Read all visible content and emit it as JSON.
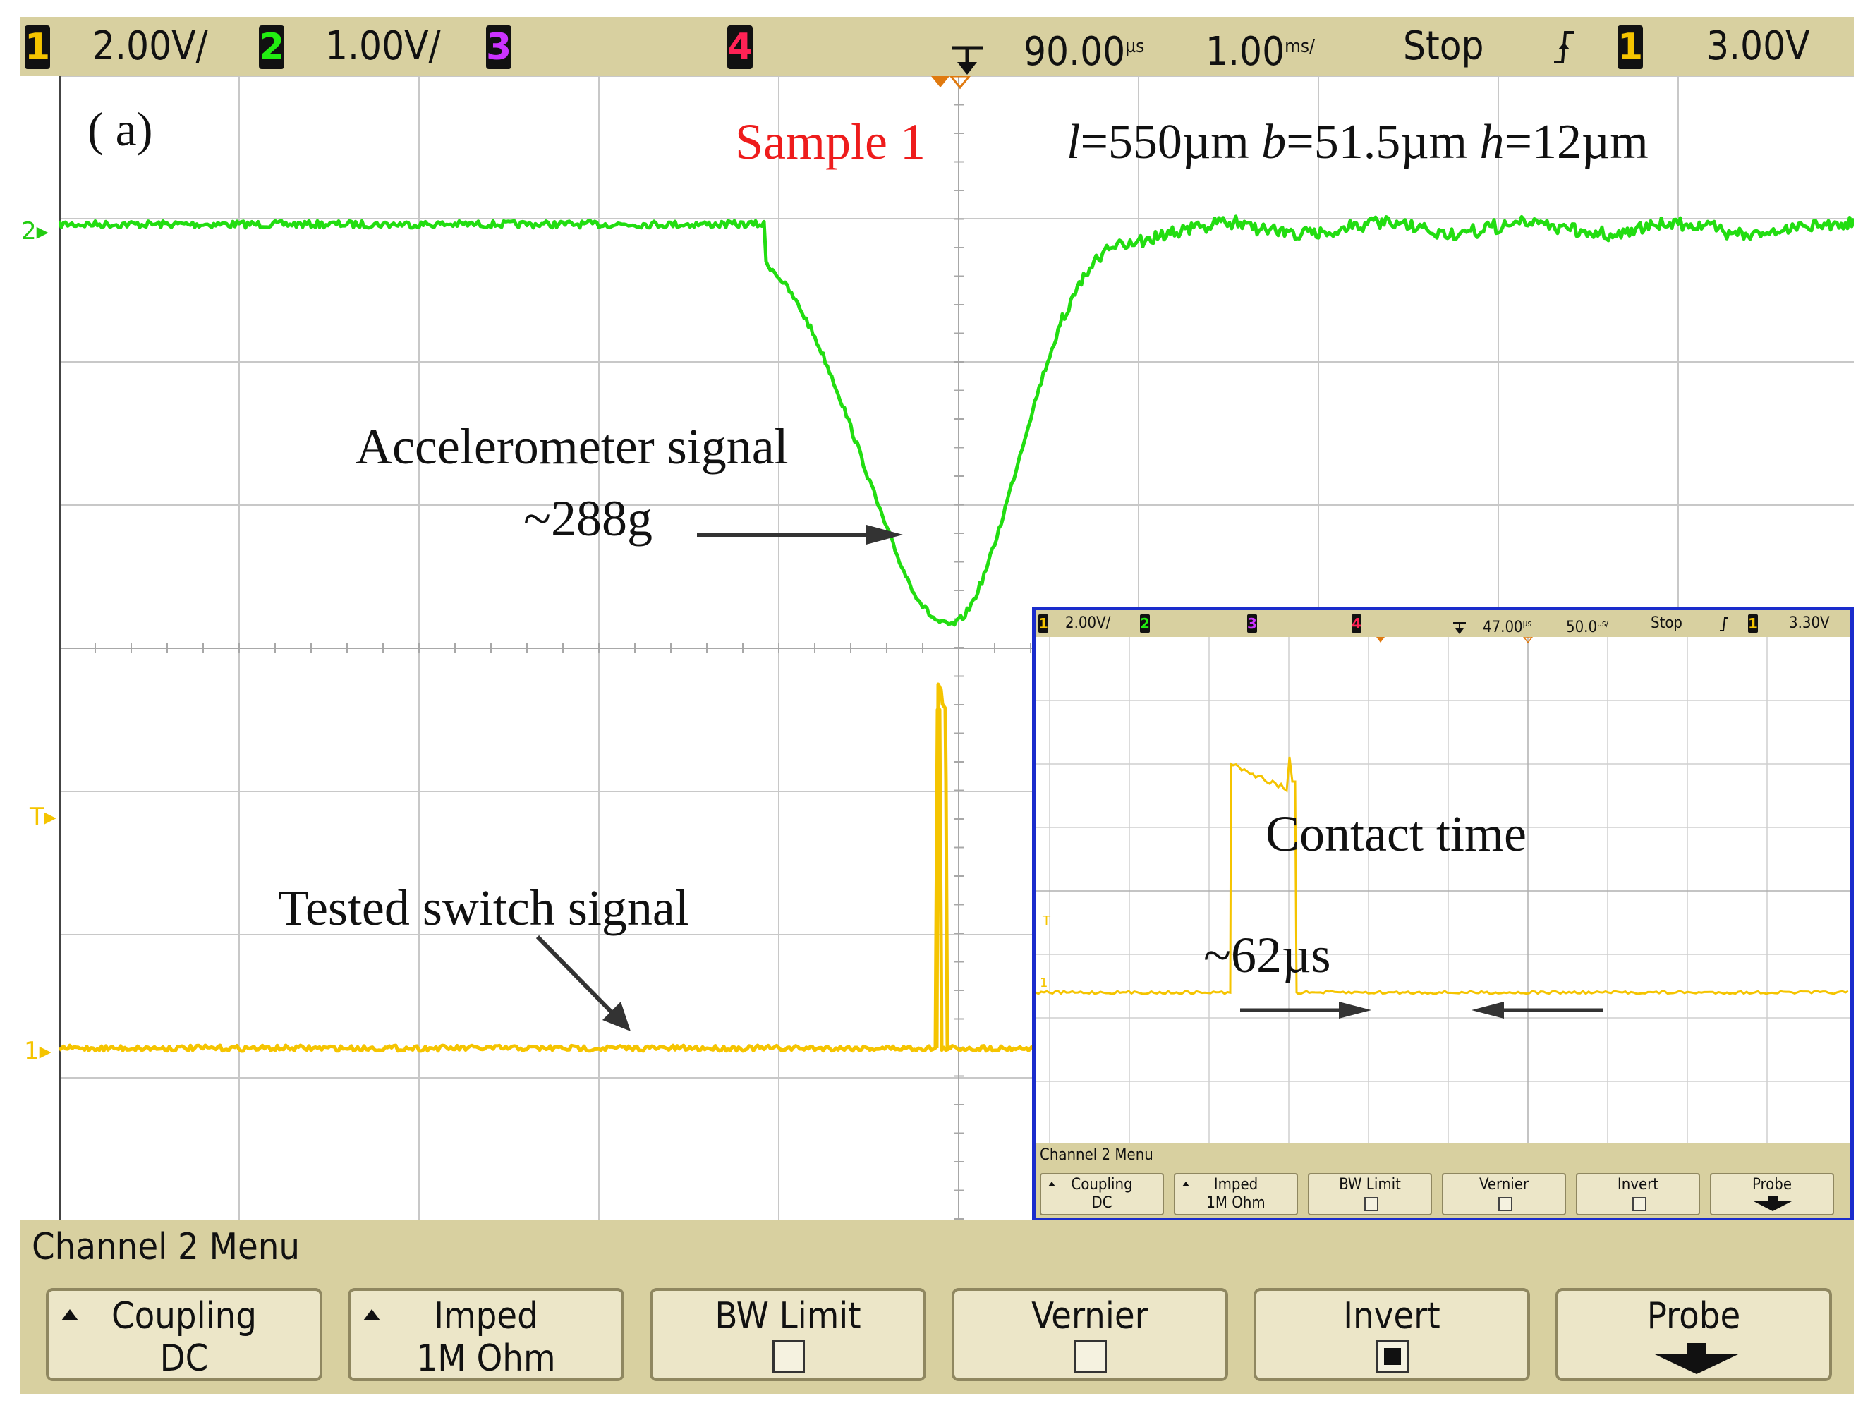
{
  "top_bar": {
    "ch1_num": "1",
    "ch1_scale": "2.00V/",
    "ch2_num": "2",
    "ch2_scale": "1.00V/",
    "ch3_num": "3",
    "ch4_num": "4",
    "time_delay": "90.00",
    "time_delay_unit": "µs",
    "time_scale": "1.00",
    "time_scale_unit": "ms/",
    "run_state": "Stop",
    "trigger_edge_icon": "rising-edge-icon",
    "trigger_source": "1",
    "trigger_level": "3.00V",
    "colors": {
      "ch1": "#f5c400",
      "ch2": "#22ee11",
      "ch3": "#cc33ff",
      "ch4": "#ff2255"
    }
  },
  "markers": {
    "ch2": "2",
    "trigger": "T",
    "ch1": "1"
  },
  "annotations": {
    "panel_label": "( a)",
    "sample_label": "Sample 1",
    "dims_l_var": "l",
    "dims_l_val": "=550µm",
    "dims_b_var": "b",
    "dims_b_val": "=51.5µm",
    "dims_h_var": "h",
    "dims_h_val": "=12µm",
    "accel_label": "Accelerometer signal",
    "accel_value": "~288g",
    "switch_label": "Tested switch signal"
  },
  "menu": {
    "title": "Channel 2  Menu",
    "softkeys": [
      {
        "label": "Coupling",
        "value": "DC"
      },
      {
        "label": "Imped",
        "value": "1M Ohm"
      },
      {
        "label": "BW Limit",
        "checked": false
      },
      {
        "label": "Vernier",
        "checked": false
      },
      {
        "label": "Invert",
        "checked": true
      },
      {
        "label": "Probe"
      }
    ]
  },
  "inset": {
    "top_bar": {
      "ch1_num": "1",
      "ch1_scale": "2.00V/",
      "ch2_num": "2",
      "ch3_num": "3",
      "ch4_num": "4",
      "time_delay": "47.00",
      "time_delay_unit": "µs",
      "time_scale": "50.0",
      "time_scale_unit": "µs/",
      "run_state": "Stop",
      "trigger_source": "1",
      "trigger_level": "3.30V"
    },
    "contact_label": "Contact time",
    "contact_value": "~62µs",
    "menu": {
      "title": "Channel 2  Menu",
      "softkeys": [
        {
          "label": "Coupling",
          "value": "DC"
        },
        {
          "label": "Imped",
          "value": "1M Ohm"
        },
        {
          "label": "BW Limit"
        },
        {
          "label": "Vernier"
        },
        {
          "label": "Invert"
        },
        {
          "label": "Probe"
        }
      ]
    }
  }
}
